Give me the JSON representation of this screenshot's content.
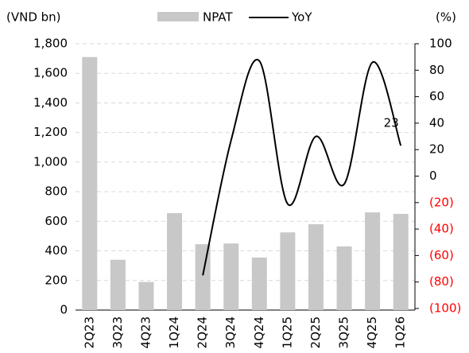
{
  "chart_data": {
    "type": "bar_line",
    "y_label": "(VND bn)",
    "y2_label": "(%)",
    "categories": [
      "2Q23",
      "3Q23",
      "4Q23",
      "1Q24",
      "2Q24",
      "3Q24",
      "4Q24",
      "1Q25",
      "2Q25",
      "3Q25",
      "4Q25",
      "1Q26"
    ],
    "series": [
      {
        "name": "NPAT",
        "type": "bar",
        "color": "#c8c8c8",
        "values": [
          1710,
          340,
          190,
          655,
          445,
          450,
          355,
          525,
          580,
          430,
          660,
          650
        ]
      },
      {
        "name": "YoY",
        "type": "line",
        "axis": "y2",
        "color": "#000000",
        "values": [
          null,
          null,
          null,
          null,
          -75,
          27,
          87,
          -21,
          30,
          -6,
          86,
          23
        ]
      }
    ],
    "ylim": [
      0,
      1800
    ],
    "yticks": [
      0,
      200,
      400,
      600,
      800,
      {
        "value": 1000,
        "label": "1,000"
      },
      {
        "value": 1200,
        "label": "1,200"
      },
      {
        "value": 1400,
        "label": "1,400"
      },
      {
        "value": 1600,
        "label": "1,600"
      },
      {
        "value": 1800,
        "label": "1,800"
      }
    ],
    "y2lim": [
      -100,
      100
    ],
    "y2ticks": [
      {
        "value": -100,
        "label": "(100)"
      },
      {
        "value": -80,
        "label": "(80)"
      },
      {
        "value": -60,
        "label": "(60)"
      },
      {
        "value": -40,
        "label": "(40)"
      },
      {
        "value": -20,
        "label": "(20)"
      },
      0,
      20,
      40,
      60,
      80,
      100
    ],
    "negative_tick_color": "#ff0000",
    "grid": true,
    "legend": "top"
  }
}
